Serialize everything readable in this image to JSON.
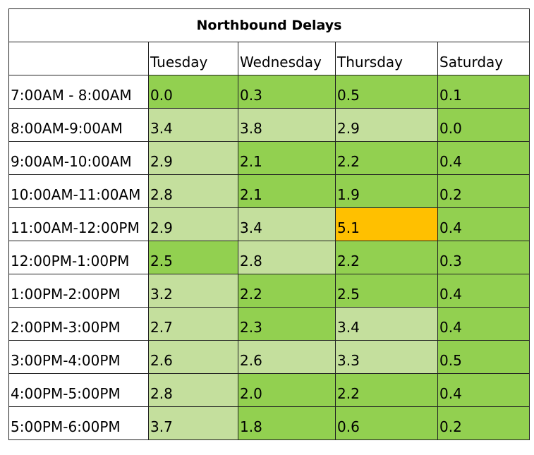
{
  "table": {
    "title": "Northbound Delays",
    "columns": [
      "",
      "Tuesday",
      "Wednesday",
      "Thursday",
      "Saturday"
    ],
    "colors": {
      "bright_green": "#92d050",
      "light_green": "#c4df9d",
      "orange": "#ffc000",
      "white": "#ffffff"
    },
    "rows": [
      {
        "label": "7:00AM - 8:00AM",
        "values": [
          "0.0",
          "0.3",
          "0.5",
          "0.1"
        ],
        "fills": [
          "bright_green",
          "bright_green",
          "bright_green",
          "bright_green"
        ]
      },
      {
        "label": "8:00AM-9:00AM",
        "values": [
          "3.4",
          "3.8",
          "2.9",
          "0.0"
        ],
        "fills": [
          "light_green",
          "light_green",
          "light_green",
          "bright_green"
        ]
      },
      {
        "label": "9:00AM-10:00AM",
        "values": [
          "2.9",
          "2.1",
          "2.2",
          "0.4"
        ],
        "fills": [
          "light_green",
          "bright_green",
          "bright_green",
          "bright_green"
        ]
      },
      {
        "label": "10:00AM-11:00AM",
        "values": [
          "2.8",
          "2.1",
          "1.9",
          "0.2"
        ],
        "fills": [
          "light_green",
          "bright_green",
          "bright_green",
          "bright_green"
        ]
      },
      {
        "label": "11:00AM-12:00PM",
        "values": [
          "2.9",
          "3.4",
          "5.1",
          "0.4"
        ],
        "fills": [
          "light_green",
          "light_green",
          "orange",
          "bright_green"
        ]
      },
      {
        "label": "12:00PM-1:00PM",
        "values": [
          "2.5",
          "2.8",
          "2.2",
          "0.3"
        ],
        "fills": [
          "bright_green",
          "light_green",
          "bright_green",
          "bright_green"
        ]
      },
      {
        "label": "1:00PM-2:00PM",
        "values": [
          "3.2",
          "2.2",
          "2.5",
          "0.4"
        ],
        "fills": [
          "light_green",
          "bright_green",
          "bright_green",
          "bright_green"
        ]
      },
      {
        "label": "2:00PM-3:00PM",
        "values": [
          "2.7",
          "2.3",
          "3.4",
          "0.4"
        ],
        "fills": [
          "light_green",
          "bright_green",
          "light_green",
          "bright_green"
        ]
      },
      {
        "label": "3:00PM-4:00PM",
        "values": [
          "2.6",
          "2.6",
          "3.3",
          "0.5"
        ],
        "fills": [
          "light_green",
          "light_green",
          "light_green",
          "bright_green"
        ]
      },
      {
        "label": "4:00PM-5:00PM",
        "values": [
          "2.8",
          "2.0",
          "2.2",
          "0.4"
        ],
        "fills": [
          "light_green",
          "bright_green",
          "bright_green",
          "bright_green"
        ]
      },
      {
        "label": "5:00PM-6:00PM",
        "values": [
          "3.7",
          "1.8",
          "0.6",
          "0.2"
        ],
        "fills": [
          "light_green",
          "bright_green",
          "bright_green",
          "bright_green"
        ]
      }
    ]
  }
}
